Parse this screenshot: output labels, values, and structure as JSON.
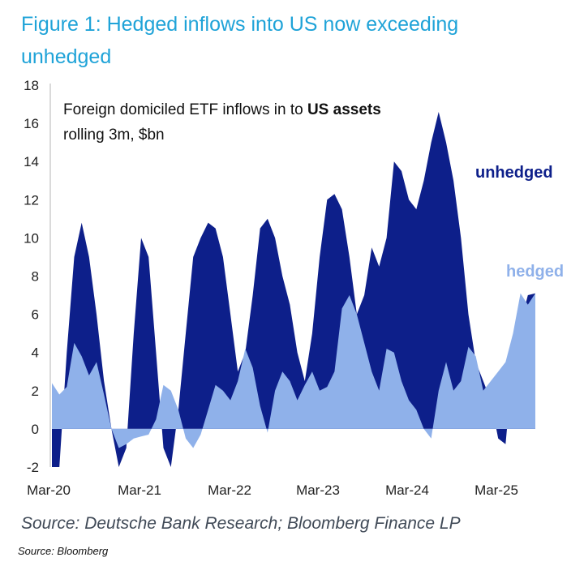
{
  "title": "Figure 1: Hedged inflows into US now exceeding unhedged",
  "source_line": "Source: Deutsche Bank Research; Bloomberg Finance LP",
  "source_small": "Source: Bloomberg",
  "chart_data": {
    "type": "area",
    "annotation_line1_prefix": "Foreign domiciled ETF inflows in to ",
    "annotation_line1_bold": "US assets",
    "annotation_line2": "rolling 3m, $bn",
    "ylim": [
      -2,
      18
    ],
    "yticks": [
      -2,
      0,
      2,
      4,
      6,
      8,
      10,
      12,
      14,
      16,
      18
    ],
    "xlim": [
      "2020-03",
      "2025-08"
    ],
    "xticks": [
      "Mar-20",
      "Mar-21",
      "Mar-22",
      "Mar-23",
      "Mar-24",
      "Mar-25"
    ],
    "colors": {
      "unhedged": "#0d1f8a",
      "hedged": "#8fb1ea",
      "title": "#1fa3d8"
    },
    "series": [
      {
        "name": "unhedged",
        "x": [
          "2020-03",
          "2020-04",
          "2020-05",
          "2020-06",
          "2020-07",
          "2020-08",
          "2020-09",
          "2020-10",
          "2020-11",
          "2020-12",
          "2021-01",
          "2021-02",
          "2021-03",
          "2021-04",
          "2021-05",
          "2021-06",
          "2021-07",
          "2021-08",
          "2021-09",
          "2021-10",
          "2021-11",
          "2021-12",
          "2022-01",
          "2022-02",
          "2022-03",
          "2022-04",
          "2022-05",
          "2022-06",
          "2022-07",
          "2022-08",
          "2022-09",
          "2022-10",
          "2022-11",
          "2022-12",
          "2023-01",
          "2023-02",
          "2023-03",
          "2023-04",
          "2023-05",
          "2023-06",
          "2023-07",
          "2023-08",
          "2023-09",
          "2023-10",
          "2023-11",
          "2023-12",
          "2024-01",
          "2024-02",
          "2024-03",
          "2024-04",
          "2024-05",
          "2024-06",
          "2024-07",
          "2024-08",
          "2024-09",
          "2024-10",
          "2024-11",
          "2024-12",
          "2025-01",
          "2025-02",
          "2025-03",
          "2025-04",
          "2025-05",
          "2025-06",
          "2025-07",
          "2025-08"
        ],
        "values": [
          -2.0,
          -2.0,
          4.0,
          9.0,
          10.8,
          9.0,
          6.0,
          2.5,
          0.0,
          -2.0,
          -1.0,
          5.0,
          10.0,
          9.0,
          4.0,
          -1.0,
          -2.0,
          1.0,
          5.0,
          9.0,
          10.0,
          10.8,
          10.5,
          9.0,
          6.0,
          3.0,
          4.0,
          7.0,
          10.5,
          11.0,
          10.0,
          8.0,
          6.5,
          4.0,
          2.5,
          5.0,
          9.0,
          12.0,
          12.3,
          11.5,
          9.0,
          6.0,
          7.0,
          9.5,
          8.5,
          10.0,
          14.0,
          13.5,
          12.0,
          11.5,
          13.0,
          15.0,
          16.6,
          15.0,
          13.0,
          10.0,
          6.0,
          3.5,
          2.5,
          1.5,
          -0.5,
          -0.8,
          3.5,
          5.5,
          7.0,
          7.1
        ]
      },
      {
        "name": "hedged",
        "x": [
          "2020-03",
          "2020-04",
          "2020-05",
          "2020-06",
          "2020-07",
          "2020-08",
          "2020-09",
          "2020-10",
          "2020-11",
          "2020-12",
          "2021-01",
          "2021-02",
          "2021-03",
          "2021-04",
          "2021-05",
          "2021-06",
          "2021-07",
          "2021-08",
          "2021-09",
          "2021-10",
          "2021-11",
          "2021-12",
          "2022-01",
          "2022-02",
          "2022-03",
          "2022-04",
          "2022-05",
          "2022-06",
          "2022-07",
          "2022-08",
          "2022-09",
          "2022-10",
          "2022-11",
          "2022-12",
          "2023-01",
          "2023-02",
          "2023-03",
          "2023-04",
          "2023-05",
          "2023-06",
          "2023-07",
          "2023-08",
          "2023-09",
          "2023-10",
          "2023-11",
          "2023-12",
          "2024-01",
          "2024-02",
          "2024-03",
          "2024-04",
          "2024-05",
          "2024-06",
          "2024-07",
          "2024-08",
          "2024-09",
          "2024-10",
          "2024-11",
          "2024-12",
          "2025-01",
          "2025-02",
          "2025-03",
          "2025-04",
          "2025-05",
          "2025-06",
          "2025-07",
          "2025-08"
        ],
        "values": [
          2.4,
          1.8,
          2.2,
          4.5,
          3.8,
          2.8,
          3.5,
          1.8,
          0.0,
          -1.0,
          -0.8,
          -0.5,
          -0.4,
          -0.3,
          0.5,
          2.3,
          2.0,
          1.0,
          -0.5,
          -1.0,
          -0.3,
          1.0,
          2.3,
          2.0,
          1.5,
          2.5,
          4.2,
          3.2,
          1.2,
          -0.2,
          2.0,
          3.0,
          2.5,
          1.5,
          2.3,
          3.0,
          2.0,
          2.2,
          3.0,
          6.3,
          7.0,
          6.0,
          4.5,
          3.0,
          2.0,
          4.2,
          4.0,
          2.5,
          1.5,
          1.0,
          0.0,
          -0.5,
          2.0,
          3.5,
          2.0,
          2.5,
          4.3,
          3.8,
          2.0,
          2.5,
          3.0,
          3.5,
          5.0,
          7.1,
          6.5,
          7.1
        ]
      }
    ]
  }
}
